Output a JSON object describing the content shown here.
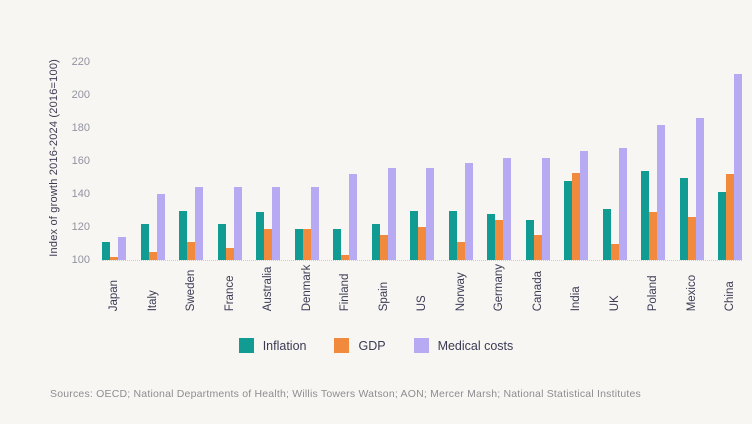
{
  "chart_data": {
    "type": "bar",
    "title": "",
    "xlabel": "",
    "ylabel": "Index of growth 2016-2024 (2016=100)",
    "ylim": [
      100,
      220
    ],
    "yticks": [
      100,
      120,
      140,
      160,
      180,
      200,
      220
    ],
    "grid": "baseline-dotted-only",
    "legend_position": "bottom-center",
    "categories": [
      "Japan",
      "Italy",
      "Sweden",
      "France",
      "Australia",
      "Denmark",
      "Finland",
      "Spain",
      "US",
      "Norway",
      "Germany",
      "Canada",
      "India",
      "UK",
      "Poland",
      "Mexico",
      "China"
    ],
    "series": [
      {
        "name": "Inflation",
        "color": "#119C93",
        "values": [
          111,
          122,
          130,
          122,
          129,
          119,
          119,
          122,
          130,
          130,
          128,
          124,
          148,
          131,
          154,
          150,
          141
        ]
      },
      {
        "name": "GDP",
        "color": "#F28A3D",
        "values": [
          102,
          105,
          111,
          107,
          119,
          119,
          103,
          115,
          120,
          111,
          124,
          115,
          153,
          110,
          129,
          126,
          152
        ]
      },
      {
        "name": "Medical costs",
        "color": "#B7A9F2",
        "values": [
          114,
          140,
          144,
          144,
          144,
          144,
          152,
          156,
          156,
          159,
          162,
          162,
          166,
          168,
          182,
          186,
          213
        ]
      }
    ]
  },
  "footer": {
    "sources": "Sources: OECD; National Departments of Health; Willis Towers Watson; AON; Mercer Marsh; National Statistical Institutes"
  },
  "colors": {
    "background": "#F8F6F2",
    "axis_tick_text": "#9193A0",
    "label_text": "#3B3B54",
    "baseline": "#CFCCC6",
    "sources_text": "#8D8D91"
  }
}
